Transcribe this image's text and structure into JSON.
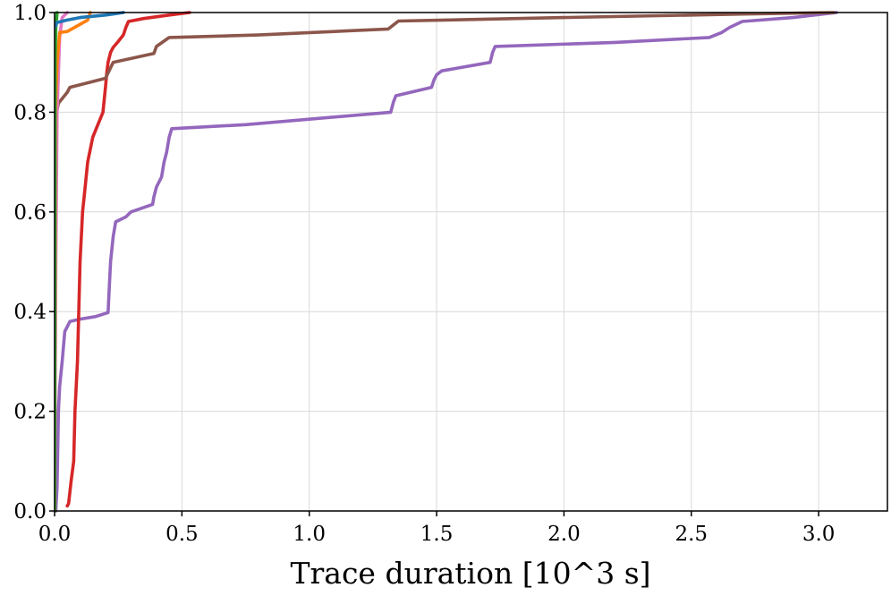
{
  "chart_data": {
    "type": "line",
    "title": "",
    "xlabel": "Trace duration [10^3 s]",
    "ylabel": "",
    "xlim": [
      0,
      3.27
    ],
    "ylim": [
      0,
      1.0
    ],
    "xticks": [
      0.0,
      0.5,
      1.0,
      1.5,
      2.0,
      2.5,
      3.0
    ],
    "xtick_labels": [
      "0.0",
      "0.5",
      "1.0",
      "1.5",
      "2.0",
      "2.5",
      "3.0"
    ],
    "yticks": [
      0.0,
      0.2,
      0.4,
      0.6,
      0.8,
      1.0
    ],
    "ytick_labels": [
      "0.0",
      "0.2",
      "0.4",
      "0.6",
      "0.8",
      "1.0"
    ],
    "grid": true,
    "series": [
      {
        "name": "purple",
        "color": "#9467bd",
        "points": [
          [
            0.005,
            0.0
          ],
          [
            0.01,
            0.05
          ],
          [
            0.015,
            0.2
          ],
          [
            0.02,
            0.25
          ],
          [
            0.03,
            0.3
          ],
          [
            0.04,
            0.36
          ],
          [
            0.06,
            0.38
          ],
          [
            0.1,
            0.385
          ],
          [
            0.16,
            0.39
          ],
          [
            0.21,
            0.398
          ],
          [
            0.215,
            0.45
          ],
          [
            0.22,
            0.5
          ],
          [
            0.23,
            0.55
          ],
          [
            0.24,
            0.58
          ],
          [
            0.28,
            0.59
          ],
          [
            0.3,
            0.6
          ],
          [
            0.385,
            0.615
          ],
          [
            0.39,
            0.63
          ],
          [
            0.4,
            0.65
          ],
          [
            0.42,
            0.67
          ],
          [
            0.43,
            0.7
          ],
          [
            0.44,
            0.72
          ],
          [
            0.45,
            0.75
          ],
          [
            0.46,
            0.767
          ],
          [
            0.75,
            0.775
          ],
          [
            1.32,
            0.8
          ],
          [
            1.33,
            0.82
          ],
          [
            1.34,
            0.833
          ],
          [
            1.48,
            0.85
          ],
          [
            1.49,
            0.865
          ],
          [
            1.5,
            0.875
          ],
          [
            1.52,
            0.883
          ],
          [
            1.71,
            0.9
          ],
          [
            1.72,
            0.92
          ],
          [
            1.73,
            0.932
          ],
          [
            2.2,
            0.94
          ],
          [
            2.57,
            0.95
          ],
          [
            2.62,
            0.96
          ],
          [
            2.65,
            0.97
          ],
          [
            2.7,
            0.982
          ],
          [
            2.9,
            0.99
          ],
          [
            3.07,
            1.0
          ]
        ]
      },
      {
        "name": "red",
        "color": "#d62728",
        "points": [
          [
            0.05,
            0.01
          ],
          [
            0.055,
            0.015
          ],
          [
            0.065,
            0.06
          ],
          [
            0.075,
            0.1
          ],
          [
            0.08,
            0.2
          ],
          [
            0.09,
            0.3
          ],
          [
            0.1,
            0.5
          ],
          [
            0.11,
            0.6
          ],
          [
            0.12,
            0.65
          ],
          [
            0.13,
            0.7
          ],
          [
            0.15,
            0.75
          ],
          [
            0.17,
            0.775
          ],
          [
            0.19,
            0.8
          ],
          [
            0.2,
            0.85
          ],
          [
            0.205,
            0.88
          ],
          [
            0.21,
            0.9
          ],
          [
            0.22,
            0.92
          ],
          [
            0.23,
            0.93
          ],
          [
            0.25,
            0.942
          ],
          [
            0.27,
            0.955
          ],
          [
            0.28,
            0.97
          ],
          [
            0.29,
            0.982
          ],
          [
            0.35,
            0.988
          ],
          [
            0.45,
            0.995
          ],
          [
            0.53,
            1.0
          ]
        ]
      },
      {
        "name": "brown",
        "color": "#8c564b",
        "points": [
          [
            0.0,
            0.0
          ],
          [
            0.005,
            0.6
          ],
          [
            0.008,
            0.8
          ],
          [
            0.015,
            0.818
          ],
          [
            0.05,
            0.84
          ],
          [
            0.06,
            0.85
          ],
          [
            0.2,
            0.868
          ],
          [
            0.23,
            0.9
          ],
          [
            0.39,
            0.918
          ],
          [
            0.4,
            0.932
          ],
          [
            0.45,
            0.95
          ],
          [
            0.8,
            0.955
          ],
          [
            1.31,
            0.967
          ],
          [
            1.35,
            0.983
          ],
          [
            2.0,
            0.99
          ],
          [
            2.7,
            0.997
          ],
          [
            3.06,
            1.0
          ]
        ]
      },
      {
        "name": "pink",
        "color": "#e377c2",
        "points": [
          [
            0.0,
            0.0
          ],
          [
            0.005,
            0.5
          ],
          [
            0.01,
            0.8
          ],
          [
            0.02,
            0.95
          ],
          [
            0.03,
            0.99
          ],
          [
            0.05,
            1.0
          ]
        ]
      },
      {
        "name": "orange",
        "color": "#ff7f0e",
        "points": [
          [
            0.0,
            0.0
          ],
          [
            0.003,
            0.8
          ],
          [
            0.01,
            0.9
          ],
          [
            0.02,
            0.96
          ],
          [
            0.05,
            0.962
          ],
          [
            0.13,
            0.985
          ],
          [
            0.14,
            1.0
          ]
        ]
      },
      {
        "name": "green",
        "color": "#2ca02c",
        "points": [
          [
            0.0,
            0.0
          ],
          [
            0.002,
            0.9
          ],
          [
            0.005,
            0.97
          ],
          [
            0.01,
            1.0
          ]
        ]
      },
      {
        "name": "blue",
        "color": "#1f77b4",
        "points": [
          [
            0.0,
            0.97
          ],
          [
            0.01,
            0.98
          ],
          [
            0.05,
            0.985
          ],
          [
            0.1,
            0.99
          ],
          [
            0.2,
            0.995
          ],
          [
            0.27,
            1.0
          ]
        ]
      }
    ]
  }
}
